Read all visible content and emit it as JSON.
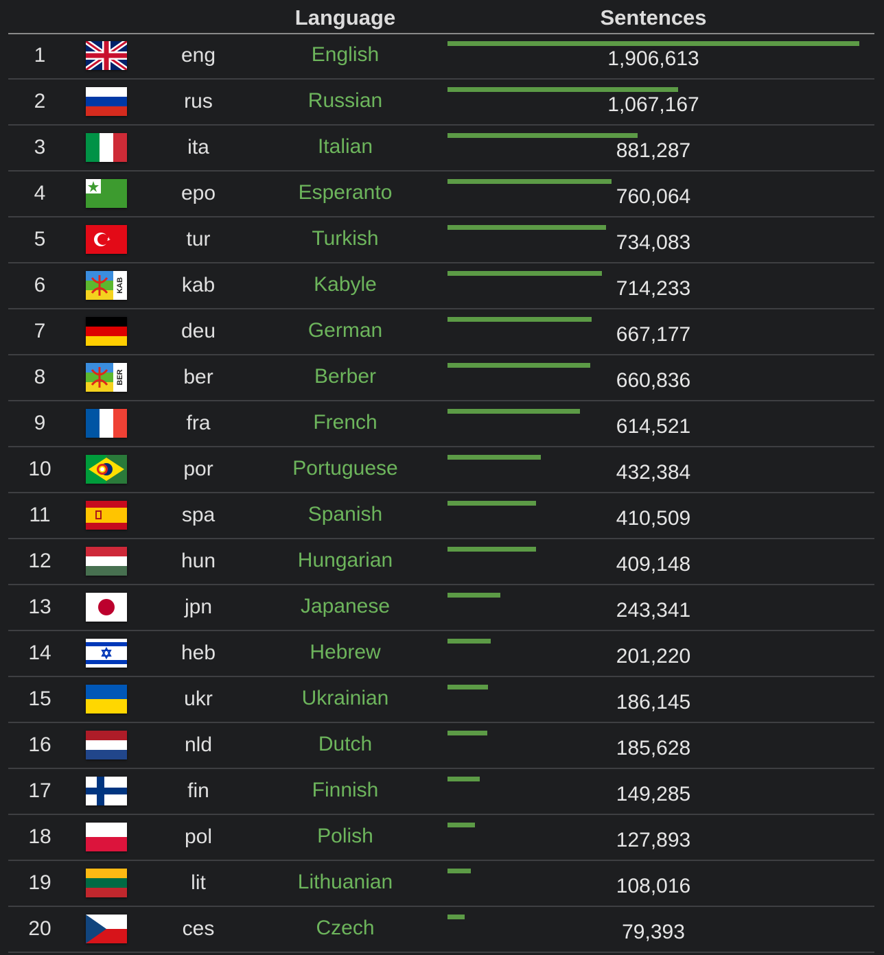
{
  "header": {
    "language_label": "Language",
    "sentences_label": "Sentences"
  },
  "max_count": 1906613,
  "rows": [
    {
      "rank": "1",
      "code": "eng",
      "name": "English",
      "count": "1,906,613",
      "value": 1906613,
      "flag": "uk-flag-icon"
    },
    {
      "rank": "2",
      "code": "rus",
      "name": "Russian",
      "count": "1,067,167",
      "value": 1067167,
      "flag": "russia-flag-icon"
    },
    {
      "rank": "3",
      "code": "ita",
      "name": "Italian",
      "count": "881,287",
      "value": 881287,
      "flag": "italy-flag-icon"
    },
    {
      "rank": "4",
      "code": "epo",
      "name": "Esperanto",
      "count": "760,064",
      "value": 760064,
      "flag": "esperanto-flag-icon"
    },
    {
      "rank": "5",
      "code": "tur",
      "name": "Turkish",
      "count": "734,083",
      "value": 734083,
      "flag": "turkey-flag-icon"
    },
    {
      "rank": "6",
      "code": "kab",
      "name": "Kabyle",
      "count": "714,233",
      "value": 714233,
      "flag": "kabyle-flag-icon",
      "flag_text": "KAB"
    },
    {
      "rank": "7",
      "code": "deu",
      "name": "German",
      "count": "667,177",
      "value": 667177,
      "flag": "germany-flag-icon"
    },
    {
      "rank": "8",
      "code": "ber",
      "name": "Berber",
      "count": "660,836",
      "value": 660836,
      "flag": "berber-flag-icon",
      "flag_text": "BER"
    },
    {
      "rank": "9",
      "code": "fra",
      "name": "French",
      "count": "614,521",
      "value": 614521,
      "flag": "france-flag-icon"
    },
    {
      "rank": "10",
      "code": "por",
      "name": "Portuguese",
      "count": "432,384",
      "value": 432384,
      "flag": "portuguese-flag-icon"
    },
    {
      "rank": "11",
      "code": "spa",
      "name": "Spanish",
      "count": "410,509",
      "value": 410509,
      "flag": "spain-flag-icon"
    },
    {
      "rank": "12",
      "code": "hun",
      "name": "Hungarian",
      "count": "409,148",
      "value": 409148,
      "flag": "hungary-flag-icon"
    },
    {
      "rank": "13",
      "code": "jpn",
      "name": "Japanese",
      "count": "243,341",
      "value": 243341,
      "flag": "japan-flag-icon"
    },
    {
      "rank": "14",
      "code": "heb",
      "name": "Hebrew",
      "count": "201,220",
      "value": 201220,
      "flag": "israel-flag-icon"
    },
    {
      "rank": "15",
      "code": "ukr",
      "name": "Ukrainian",
      "count": "186,145",
      "value": 186145,
      "flag": "ukraine-flag-icon"
    },
    {
      "rank": "16",
      "code": "nld",
      "name": "Dutch",
      "count": "185,628",
      "value": 185628,
      "flag": "netherlands-flag-icon"
    },
    {
      "rank": "17",
      "code": "fin",
      "name": "Finnish",
      "count": "149,285",
      "value": 149285,
      "flag": "finland-flag-icon"
    },
    {
      "rank": "18",
      "code": "pol",
      "name": "Polish",
      "count": "127,893",
      "value": 127893,
      "flag": "poland-flag-icon"
    },
    {
      "rank": "19",
      "code": "lit",
      "name": "Lithuanian",
      "count": "108,016",
      "value": 108016,
      "flag": "lithuania-flag-icon"
    },
    {
      "rank": "20",
      "code": "ces",
      "name": "Czech",
      "count": "79,393",
      "value": 79393,
      "flag": "czech-flag-icon"
    }
  ],
  "colors": {
    "background": "#1d1e20",
    "link": "#6db55c",
    "bar": "#5c9b46",
    "divider": "#3e3f42"
  }
}
